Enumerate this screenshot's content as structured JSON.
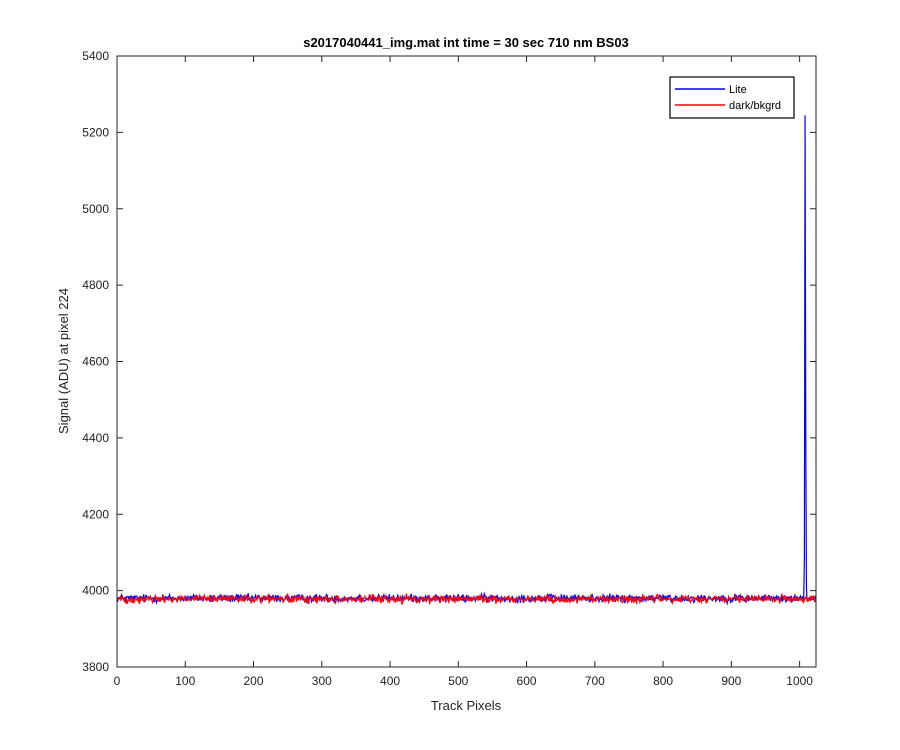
{
  "chart_data": {
    "type": "line",
    "title": "s2017040441_img.mat int time = 30 sec  710 nm BS03",
    "xlabel": "Track Pixels",
    "ylabel": "Signal (ADU) at pixel 224",
    "xlim": [
      0,
      1024
    ],
    "ylim": [
      3800,
      5400
    ],
    "xticks": [
      0,
      100,
      200,
      300,
      400,
      500,
      600,
      700,
      800,
      900,
      1000
    ],
    "yticks": [
      3800,
      4000,
      4200,
      4400,
      4600,
      4800,
      5000,
      5200,
      5400
    ],
    "grid": false,
    "legend_position": "top-right",
    "series": [
      {
        "name": "Lite",
        "color": "#0000ff",
        "baseline": 3980,
        "noise": 8,
        "x_range": [
          1,
          1024
        ],
        "peak": {
          "x": 1008,
          "y": 5245
        }
      },
      {
        "name": "dark/bkgrd",
        "color": "#ff0000",
        "baseline": 3978,
        "noise": 8,
        "x_range": [
          1,
          1024
        ]
      }
    ]
  }
}
